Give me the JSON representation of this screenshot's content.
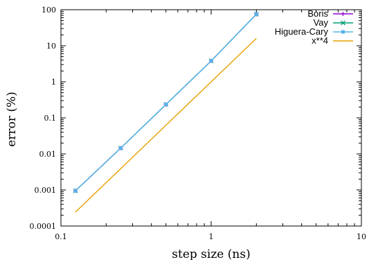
{
  "chart_data": {
    "type": "line",
    "xlabel": "step size (ns)",
    "ylabel": "error (%)",
    "xscale": "log",
    "yscale": "log",
    "xlim": [
      0.1,
      10
    ],
    "ylim": [
      0.0001,
      100
    ],
    "x_ticks": [
      0.1,
      1,
      10
    ],
    "x_tick_labels": [
      "0.1",
      "1",
      "10"
    ],
    "y_ticks": [
      0.0001,
      0.001,
      0.01,
      0.1,
      1,
      10,
      100
    ],
    "y_tick_labels": [
      "0.0001",
      "0.001",
      "0.01",
      "0.1",
      "1",
      "10",
      "100"
    ],
    "grid": false,
    "legend_position": "top-right",
    "series": [
      {
        "name": "Boris",
        "color": "#9400d3",
        "marker": "plus",
        "x": [
          0.125,
          0.25,
          0.5,
          1,
          2
        ],
        "y": [
          0.00095,
          0.0145,
          0.235,
          3.8,
          75
        ]
      },
      {
        "name": "Vay",
        "color": "#009e73",
        "marker": "cross",
        "x": [
          0.125,
          0.25,
          0.5,
          1,
          2
        ],
        "y": [
          0.00095,
          0.0145,
          0.235,
          3.8,
          75
        ]
      },
      {
        "name": "Higuera-Cary",
        "color": "#56b4e9",
        "marker": "square",
        "x": [
          0.125,
          0.25,
          0.5,
          1,
          2
        ],
        "y": [
          0.00095,
          0.0145,
          0.235,
          3.8,
          75
        ]
      },
      {
        "name": "x**4",
        "color": "#e69f00",
        "marker": "none",
        "x": [
          0.125,
          2
        ],
        "y": [
          0.000244,
          16
        ]
      }
    ]
  }
}
